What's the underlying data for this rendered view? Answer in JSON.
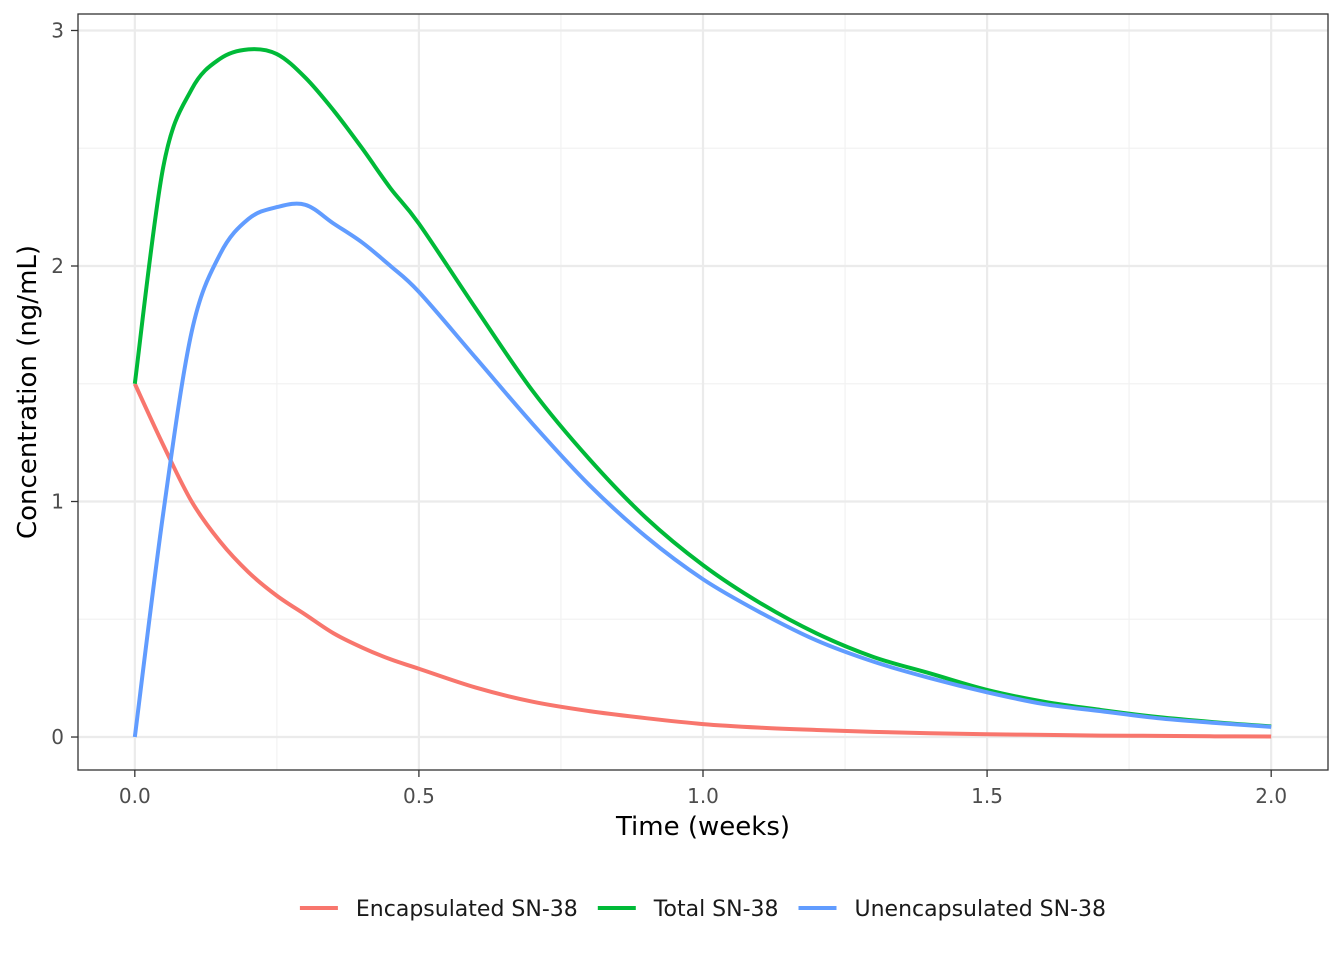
{
  "chart_data": {
    "type": "line",
    "title": "",
    "xlabel": "Time (weeks)",
    "ylabel": "Concentration (ng/mL)",
    "xlim": [
      -0.1,
      2.1
    ],
    "ylim": [
      -0.14,
      3.07
    ],
    "x_ticks": [
      0.0,
      0.5,
      1.0,
      1.5,
      2.0
    ],
    "x_tick_labels": [
      "0.0",
      "0.5",
      "1.0",
      "1.5",
      "2.0"
    ],
    "y_ticks": [
      0,
      1,
      2,
      3
    ],
    "y_tick_labels": [
      "0",
      "1",
      "2",
      "3"
    ],
    "grid": true,
    "legend_position": "bottom",
    "x": [
      0.0,
      0.05,
      0.1,
      0.15,
      0.2,
      0.25,
      0.3,
      0.35,
      0.4,
      0.45,
      0.5,
      0.6,
      0.7,
      0.8,
      0.9,
      1.0,
      1.1,
      1.2,
      1.3,
      1.4,
      1.5,
      1.6,
      1.7,
      1.8,
      1.9,
      2.0
    ],
    "series": [
      {
        "name": "Encapsulated SN-38",
        "color": "#F8766D",
        "values": [
          1.5,
          1.24,
          1.0,
          0.83,
          0.7,
          0.6,
          0.52,
          0.44,
          0.38,
          0.33,
          0.29,
          0.21,
          0.15,
          0.11,
          0.08,
          0.055,
          0.04,
          0.03,
          0.022,
          0.016,
          0.012,
          0.009,
          0.006,
          0.005,
          0.003,
          0.002
        ]
      },
      {
        "name": "Total SN-38",
        "color": "#00BA38",
        "values": [
          1.5,
          2.42,
          2.75,
          2.88,
          2.92,
          2.9,
          2.8,
          2.66,
          2.5,
          2.33,
          2.18,
          1.82,
          1.47,
          1.18,
          0.93,
          0.73,
          0.57,
          0.44,
          0.34,
          0.27,
          0.2,
          0.15,
          0.115,
          0.085,
          0.063,
          0.045
        ]
      },
      {
        "name": "Unencapsulated SN-38",
        "color": "#619CFF",
        "values": [
          0.0,
          0.95,
          1.72,
          2.05,
          2.2,
          2.25,
          2.26,
          2.18,
          2.1,
          2.0,
          1.89,
          1.61,
          1.33,
          1.07,
          0.85,
          0.67,
          0.53,
          0.41,
          0.32,
          0.25,
          0.19,
          0.14,
          0.11,
          0.08,
          0.06,
          0.043
        ]
      }
    ]
  }
}
